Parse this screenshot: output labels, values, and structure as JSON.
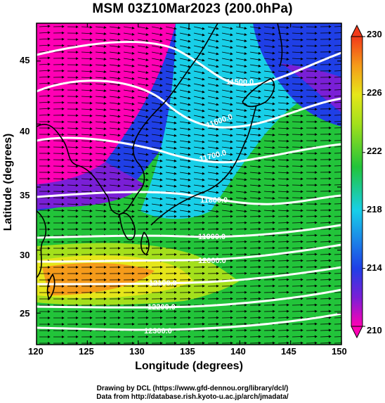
{
  "title": "MSM 03Z10Mar2023 (200.0hPa)",
  "xlabel": "Longitude (degrees)",
  "ylabel": "Latitude  (degrees)",
  "credit_line1": "Drawing by DCL (https://www.gfd-dennou.org/library/dcl/)",
  "credit_line2": "Data from http://database.rish.kyoto-u.ac.jp/arch/jmadata/",
  "colors": {
    "magenta": "#ff00b4",
    "purple": "#7a1fd6",
    "blue": "#1f3fe6",
    "cyan": "#18cfe8",
    "green": "#22c43a",
    "yellow": "#e6e61a",
    "orange": "#f59b1a",
    "red": "#f23a1a",
    "contour": "#ffffff",
    "wind_vector": "#000000",
    "coastline": "#000000"
  },
  "map": {
    "lon_range": [
      120,
      150
    ],
    "lat_range": [
      22.5,
      48
    ],
    "x_ticks": [
      "120",
      "125",
      "130",
      "135",
      "140",
      "145",
      "150"
    ],
    "y_ticks": [
      "25",
      "30",
      "35",
      "40",
      "45"
    ],
    "wind_direction": "westerly, west-to-east",
    "contour_labels": [
      "11500.0",
      "11600.0",
      "11700.0",
      "11800.0",
      "11900.0",
      "12000.0",
      "12100.0",
      "12200.0",
      "12300.0"
    ]
  },
  "colorbar": {
    "min": 210,
    "max": 230,
    "labels": [
      "230",
      "226",
      "222",
      "218",
      "214",
      "210"
    ],
    "extend": "both"
  }
}
